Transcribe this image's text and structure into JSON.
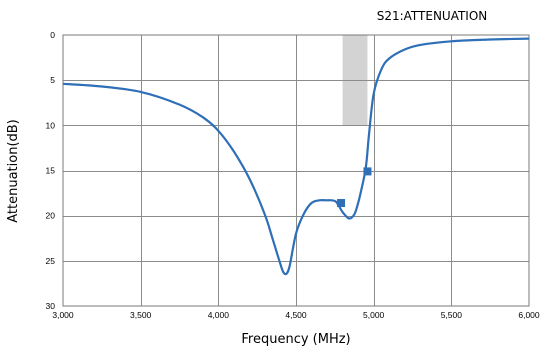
{
  "chart_data": {
    "type": "line",
    "title": "S21:ATTENUATION",
    "xlabel": "Frequency (MHz)",
    "ylabel": "Attenuation(dB)",
    "xlim": [
      3000,
      6000
    ],
    "ylim": [
      0,
      30
    ],
    "y_inverted": true,
    "grid": true,
    "x_ticks": [
      3000,
      3500,
      4000,
      4500,
      5000,
      5500,
      6000
    ],
    "x_tick_labels": [
      "3,000",
      "3,500",
      "4,000",
      "4,500",
      "5,000",
      "5,500",
      "6,000"
    ],
    "y_ticks": [
      0,
      5,
      10,
      15,
      20,
      25,
      30
    ],
    "y_tick_labels": [
      "0",
      "5",
      "10",
      "15",
      "20",
      "25",
      "30"
    ],
    "shaded_band": {
      "x_start": 4800,
      "x_end": 4960,
      "y_start": 0,
      "y_end": 10,
      "color": "#d3d3d3"
    },
    "series": [
      {
        "color": "#2e6fb7",
        "x": [
          3000,
          3250,
          3500,
          3750,
          3900,
          4000,
          4100,
          4200,
          4300,
          4350,
          4400,
          4420,
          4440,
          4460,
          4500,
          4550,
          4600,
          4650,
          4700,
          4730,
          4760,
          4800,
          4840,
          4870,
          4890,
          4920,
          4950,
          4970,
          5000,
          5050,
          5100,
          5200,
          5300,
          5500,
          5750,
          6000
        ],
        "y": [
          5.4,
          5.7,
          6.3,
          7.7,
          9.1,
          10.6,
          12.9,
          15.9,
          19.9,
          22.6,
          25.4,
          26.3,
          26.4,
          25.5,
          22.0,
          19.8,
          18.6,
          18.3,
          18.3,
          18.3,
          18.5,
          19.6,
          20.3,
          20.0,
          19.2,
          17.2,
          14.6,
          11.0,
          6.5,
          3.8,
          2.6,
          1.6,
          1.1,
          0.7,
          0.5,
          0.4
        ]
      }
    ],
    "markers": [
      {
        "x": 4790,
        "y": 18.6
      },
      {
        "x": 4960,
        "y": 15.1
      }
    ]
  }
}
